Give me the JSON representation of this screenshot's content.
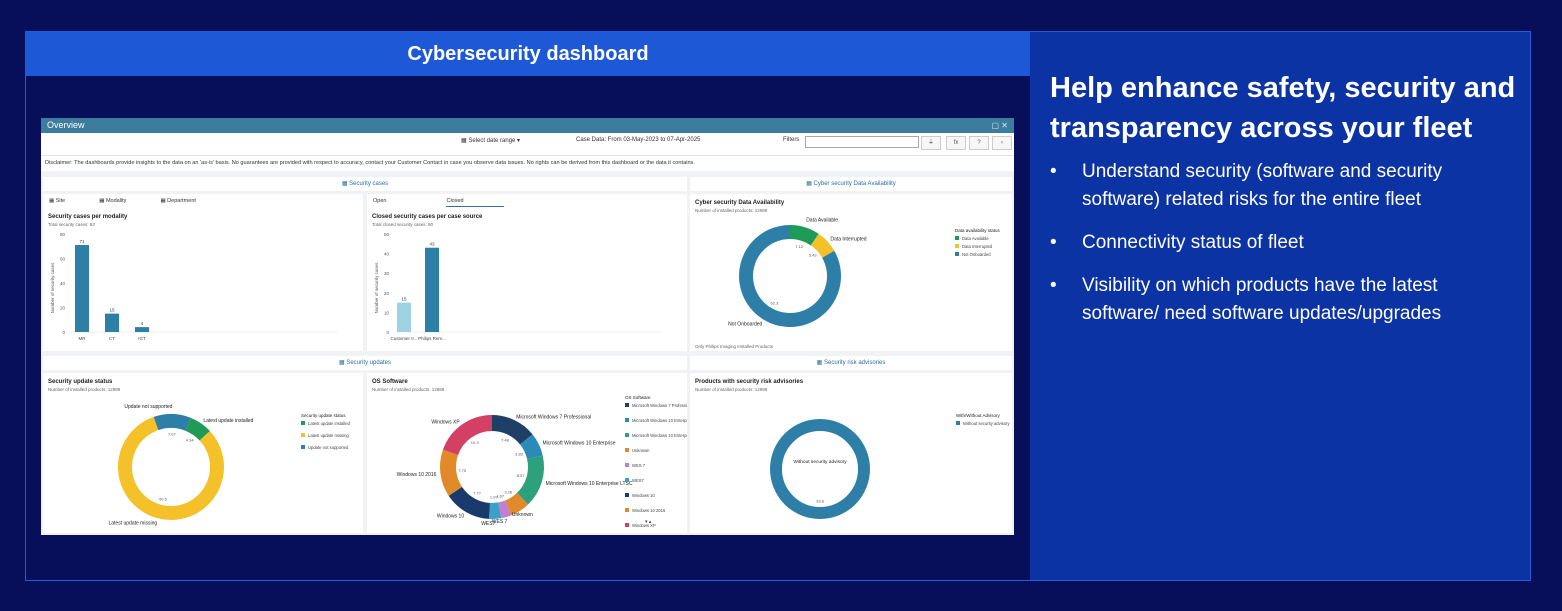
{
  "left_header": {
    "title": "Cybersecurity dashboard"
  },
  "right_panel": {
    "headline": "Help enhance safety, security and transparency across your fleet",
    "bullets": [
      "Understand security (software and security software) related risks for the entire fleet",
      "Connectivity status of fleet",
      "Visibility on which products have the latest software/ need software updates/upgrades"
    ]
  },
  "dashboard": {
    "window_title": "Overview",
    "filters": {
      "date_range_label": "Select date range",
      "case_data_text": "Case Data: From 03-May-2023 to 07-Apr-2025",
      "filters_label": "Filters",
      "filter_placeholder": ""
    },
    "disclaimer": "Disclaimer: The dashboards provide insights to the data on an 'as-is' basis. No guarantees are provided with respect to accuracy, contact your Customer Contact in case you observe data issues. No rights can be derived from this dashboard or the data it contains.",
    "sections": {
      "security_cases": "Security cases",
      "data_availability": "Cyber security Data Availability",
      "security_updates": "Security updates",
      "risk_advisories": "Security risk advisories"
    },
    "case_tabs": [
      "Site",
      "Modality",
      "Department"
    ],
    "closed_tabs": [
      "Open",
      "Closed"
    ],
    "availability_footnote": "Only Philips Imaging Installed Products",
    "colors": {
      "green": "#1f9a57",
      "yellow": "#f5c12a",
      "blue": "#2e7fa8",
      "teal": "#2596be",
      "light_teal": "#9fd3e3",
      "header": "#1d58d6"
    }
  },
  "chart_data": [
    {
      "type": "bar",
      "title": "Security cases per modality",
      "subtitle": "Total security cases: 93",
      "ylabel": "Number of security cases",
      "categories": [
        "MR",
        "CT",
        "IGT"
      ],
      "values": [
        71,
        15,
        4
      ],
      "ylim": [
        0,
        80
      ]
    },
    {
      "type": "bar",
      "title": "Closed security cases per case source",
      "subtitle": "Total closed security cases: 90",
      "ylabel": "Number of security cases",
      "categories": [
        "Customer Ir...",
        "Philips Rem..."
      ],
      "values": [
        15,
        43
      ],
      "ylim": [
        0,
        50
      ]
    },
    {
      "type": "pie",
      "title": "Cyber security Data Availability",
      "subtitle": "Number of installed products: 12988",
      "legend_title": "Data availability status",
      "labels": [
        "Data Available",
        "Data Interrupted",
        "Not Onboarded"
      ],
      "values": [
        7.12,
        5.43,
        62.3
      ]
    },
    {
      "type": "pie",
      "title": "Security update status",
      "subtitle": "Number of installed products: 12988",
      "legend_title": "Security update status",
      "labels": [
        "Latest update installed",
        "Latest update missing",
        "Update not supported"
      ],
      "values": [
        4.34,
        50.6,
        7.07
      ]
    },
    {
      "type": "pie",
      "title": "OS Software",
      "subtitle": "Number of installed products: 12988",
      "legend_title": "OS Software",
      "labels": [
        "Microsoft Windows 7 Professional",
        "Microsoft Windows 10 Enterprise",
        "Microsoft Windows 10 Enterprise LTSC",
        "Unknown",
        "WES 7",
        "WES7",
        "Windows 10",
        "Windows 10 2016",
        "Windows XP"
      ],
      "values": [
        7.48,
        3.83,
        8.57,
        3.26,
        1.67,
        1.97,
        7.77,
        7.75,
        10.3
      ]
    },
    {
      "type": "pie",
      "title": "Products with security risk advisories",
      "subtitle": "Number of installed products: 12988",
      "legend_title": "With/Without Advisory",
      "labels": [
        "Without security advisory"
      ],
      "values": [
        33.8
      ]
    }
  ]
}
